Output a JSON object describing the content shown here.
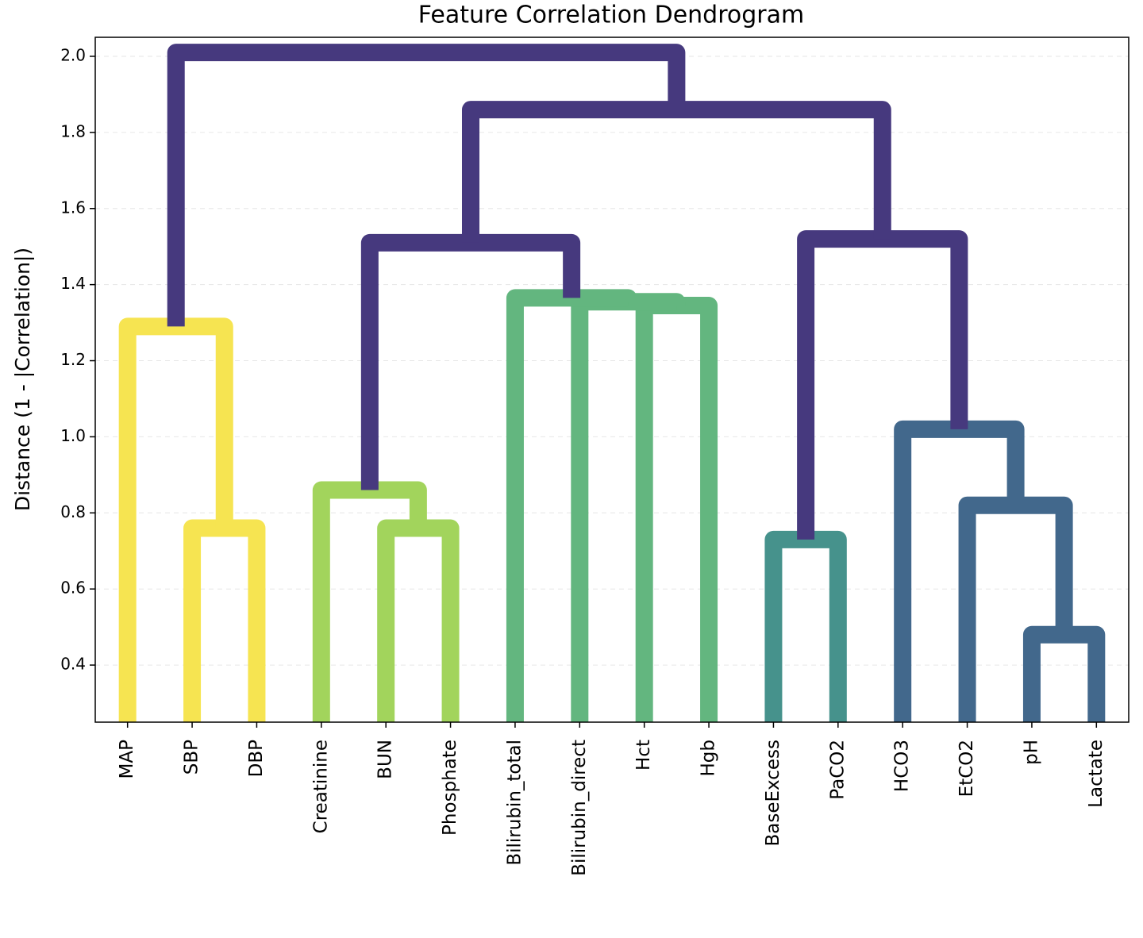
{
  "chart_data": {
    "type": "dendrogram",
    "title": "Feature Correlation Dendrogram",
    "y_label": "Distance (1 - |Correlation|)",
    "ylim": [
      0.25,
      2.05
    ],
    "yticks": [
      0.4,
      0.6,
      0.8,
      {
        "value": 1.0,
        "label": "1.0"
      },
      1.2,
      1.4,
      1.6,
      1.8,
      {
        "value": 2.0,
        "label": "2.0"
      }
    ],
    "grid": true,
    "tree": {
      "height": 2.01,
      "color": "#46397e",
      "children": [
        {
          "height": 1.29,
          "color": "#f6e451",
          "children": [
            "MAP",
            {
              "height": 0.76,
              "color": "#f6e451",
              "children": [
                "SBP",
                "DBP"
              ]
            }
          ]
        },
        {
          "height": 1.86,
          "color": "#46397e",
          "children": [
            {
              "height": 1.51,
              "color": "#46397e",
              "children": [
                {
                  "height": 0.86,
                  "color": "#a2d45c",
                  "children": [
                    "Creatinine",
                    {
                      "height": 0.76,
                      "color": "#a2d45c",
                      "children": [
                        "BUN",
                        "Phosphate"
                      ]
                    }
                  ]
                },
                {
                  "height": 1.365,
                  "color": "#63b67f",
                  "children": [
                    "Bilirubin_total",
                    {
                      "height": 1.355,
                      "color": "#63b67f",
                      "children": [
                        "Bilirubin_direct",
                        {
                          "height": 1.345,
                          "color": "#63b67f",
                          "children": [
                            "Hct",
                            "Hgb"
                          ]
                        }
                      ]
                    }
                  ]
                }
              ]
            },
            {
              "height": 1.52,
              "color": "#46397e",
              "children": [
                {
                  "height": 0.73,
                  "color": "#46928c",
                  "children": [
                    "BaseExcess",
                    "PaCO2"
                  ]
                },
                {
                  "height": 1.02,
                  "color": "#42688c",
                  "children": [
                    "HCO3",
                    {
                      "height": 0.82,
                      "color": "#42688c",
                      "children": [
                        "EtCO2",
                        {
                          "height": 0.48,
                          "color": "#42688c",
                          "children": [
                            "pH",
                            "Lactate"
                          ]
                        }
                      ]
                    }
                  ]
                }
              ]
            }
          ]
        }
      ]
    }
  }
}
